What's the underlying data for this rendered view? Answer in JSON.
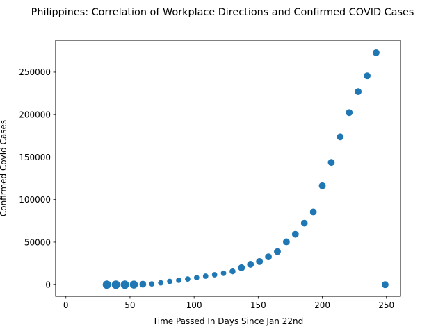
{
  "chart_data": {
    "type": "scatter",
    "title": "Philippines: Correlation of Workplace Directions and Confirmed COVID Cases",
    "xlabel": "Time Passed In Days Since Jan 22nd",
    "ylabel": "Confirmed Covid Cases",
    "xlim": [
      -8,
      261
    ],
    "ylim": [
      -13700,
      287500
    ],
    "xticks": [
      0,
      50,
      100,
      150,
      200,
      250
    ],
    "yticks": [
      0,
      50000,
      100000,
      150000,
      200000,
      250000
    ],
    "grid": false,
    "marker_color": "#1f77b4",
    "series": [
      {
        "points": [
          {
            "x": 32,
            "y": 0,
            "size": 120
          },
          {
            "x": 39,
            "y": 0,
            "size": 120
          },
          {
            "x": 46,
            "y": 0,
            "size": 120
          },
          {
            "x": 53,
            "y": 100,
            "size": 110
          },
          {
            "x": 60,
            "y": 500,
            "size": 80
          },
          {
            "x": 67,
            "y": 900,
            "size": 50
          },
          {
            "x": 74,
            "y": 2100,
            "size": 50
          },
          {
            "x": 81,
            "y": 3800,
            "size": 50
          },
          {
            "x": 88,
            "y": 5200,
            "size": 50
          },
          {
            "x": 95,
            "y": 6600,
            "size": 50
          },
          {
            "x": 102,
            "y": 8200,
            "size": 50
          },
          {
            "x": 109,
            "y": 10000,
            "size": 50
          },
          {
            "x": 116,
            "y": 11600,
            "size": 50
          },
          {
            "x": 123,
            "y": 13400,
            "size": 50
          },
          {
            "x": 130,
            "y": 15600,
            "size": 60
          },
          {
            "x": 137,
            "y": 19900,
            "size": 80
          },
          {
            "x": 144,
            "y": 23900,
            "size": 80
          },
          {
            "x": 151,
            "y": 27200,
            "size": 80
          },
          {
            "x": 158,
            "y": 32700,
            "size": 80
          },
          {
            "x": 165,
            "y": 38800,
            "size": 80
          },
          {
            "x": 172,
            "y": 50400,
            "size": 80
          },
          {
            "x": 179,
            "y": 59200,
            "size": 80
          },
          {
            "x": 186,
            "y": 72300,
            "size": 80
          },
          {
            "x": 193,
            "y": 85500,
            "size": 80
          },
          {
            "x": 200,
            "y": 116300,
            "size": 80
          },
          {
            "x": 207,
            "y": 143700,
            "size": 80
          },
          {
            "x": 214,
            "y": 173800,
            "size": 80
          },
          {
            "x": 221,
            "y": 202400,
            "size": 80
          },
          {
            "x": 228,
            "y": 227000,
            "size": 80
          },
          {
            "x": 235,
            "y": 245700,
            "size": 80
          },
          {
            "x": 242,
            "y": 272900,
            "size": 80
          },
          {
            "x": 249,
            "y": 0,
            "size": 80
          }
        ]
      }
    ]
  }
}
